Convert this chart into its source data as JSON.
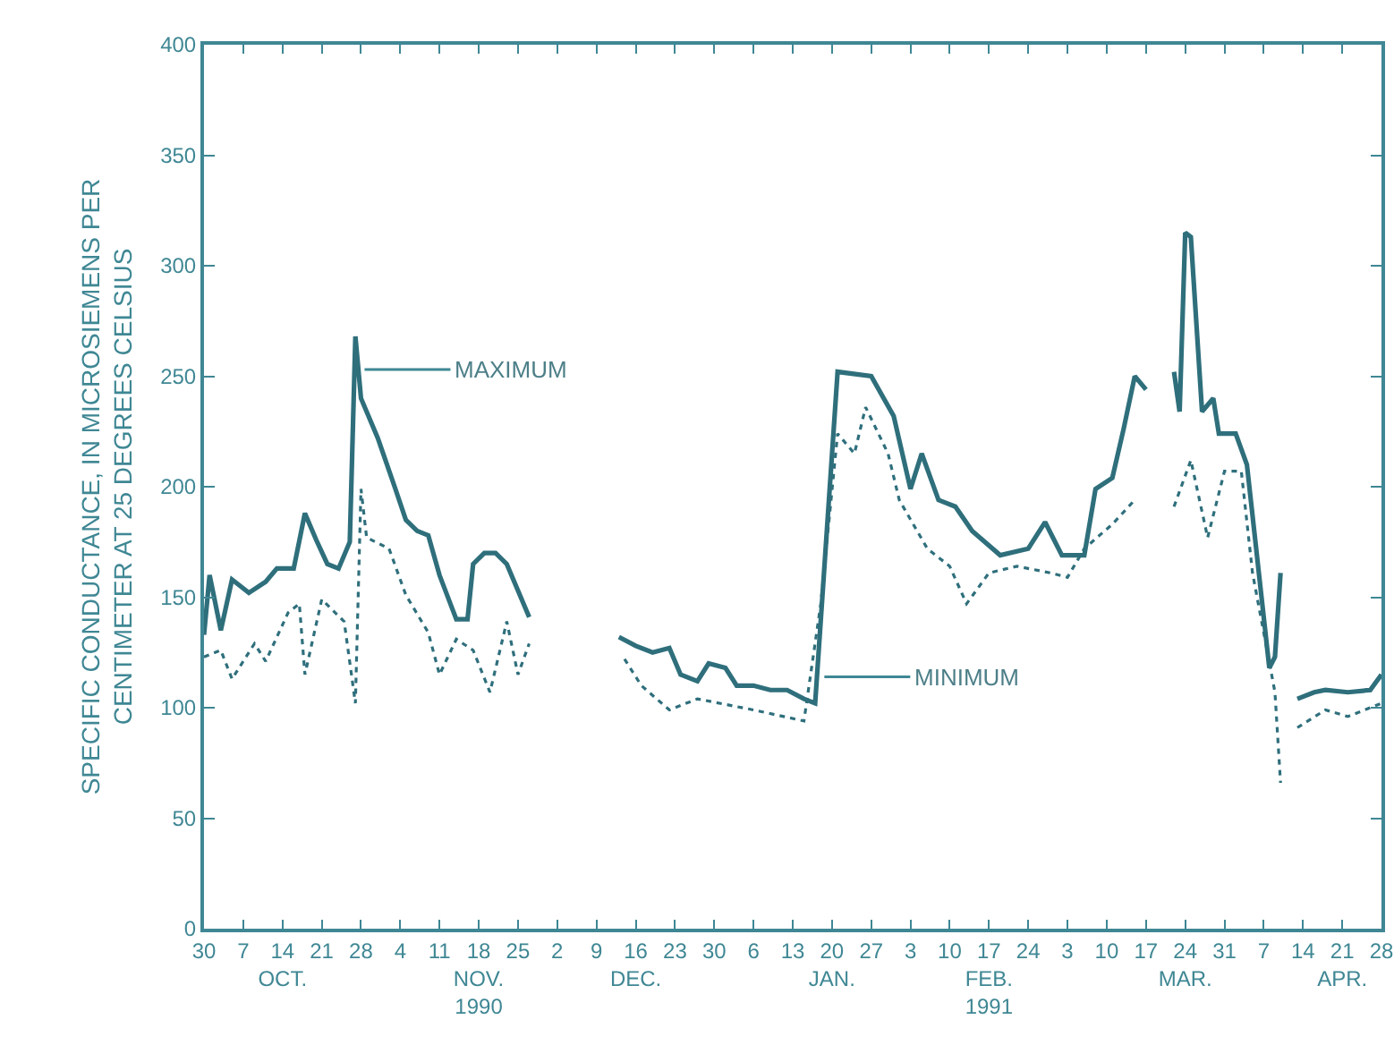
{
  "chart_data": {
    "type": "line",
    "ylabel": "SPECIFIC CONDUCTANCE, IN MICROSIEMENS PER\nCENTIMETER AT 25 DEGREES CELSIUS",
    "xlim": [
      "1990-09-30",
      "1991-04-28"
    ],
    "xticks": [
      {
        "value": "1990-09-30",
        "label": "30"
      },
      {
        "value": "1990-10-07",
        "label": "7"
      },
      {
        "value": "1990-10-14",
        "label": "14\nOCT."
      },
      {
        "value": "1990-10-21",
        "label": "21"
      },
      {
        "value": "1990-10-28",
        "label": "28"
      },
      {
        "value": "1990-11-04",
        "label": "4"
      },
      {
        "value": "1990-11-11",
        "label": "11"
      },
      {
        "value": "1990-11-18",
        "label": "18\nNOV.\n1990"
      },
      {
        "value": "1990-11-25",
        "label": "25"
      },
      {
        "value": "1990-12-02",
        "label": "2"
      },
      {
        "value": "1990-12-09",
        "label": "9"
      },
      {
        "value": "1990-12-16",
        "label": "16\nDEC."
      },
      {
        "value": "1990-12-23",
        "label": "23"
      },
      {
        "value": "1990-12-30",
        "label": "30"
      },
      {
        "value": "1991-01-06",
        "label": "6"
      },
      {
        "value": "1991-01-13",
        "label": "13"
      },
      {
        "value": "1991-01-20",
        "label": "20\nJAN."
      },
      {
        "value": "1991-01-27",
        "label": "27"
      },
      {
        "value": "1991-02-03",
        "label": "3"
      },
      {
        "value": "1991-02-10",
        "label": "10"
      },
      {
        "value": "1991-02-17",
        "label": "17\nFEB.\n1991"
      },
      {
        "value": "1991-02-24",
        "label": "24"
      },
      {
        "value": "1991-03-03",
        "label": "3"
      },
      {
        "value": "1991-03-10",
        "label": "10"
      },
      {
        "value": "1991-03-17",
        "label": "17"
      },
      {
        "value": "1991-03-24",
        "label": "24\nMAR."
      },
      {
        "value": "1991-03-31",
        "label": "31"
      },
      {
        "value": "1991-04-07",
        "label": "7"
      },
      {
        "value": "1991-04-14",
        "label": "14"
      },
      {
        "value": "1991-04-21",
        "label": "21\nAPR."
      },
      {
        "value": "1991-04-28",
        "label": "28"
      }
    ],
    "ylim": [
      0,
      400
    ],
    "yticks": [
      0,
      50,
      100,
      150,
      200,
      250,
      300,
      350,
      400
    ],
    "annotations": [
      {
        "text": "MAXIMUM",
        "x": "1990-10-28",
        "y": 253
      },
      {
        "text": "MINIMUM",
        "x": "1991-01-18",
        "y": 114
      }
    ],
    "series": [
      {
        "color": "#2f6f7c",
        "line_style": "solid",
        "x": [
          "1990-09-30",
          "1990-10-01",
          "1990-10-03",
          "1990-10-05",
          "1990-10-08",
          "1990-10-11",
          "1990-10-13",
          "1990-10-16",
          "1990-10-18",
          "1990-10-20",
          "1990-10-22",
          "1990-10-24",
          "1990-10-26",
          "1990-10-27",
          "1990-10-28",
          "1990-10-31",
          "1990-11-03",
          "1990-11-05",
          "1990-11-07",
          "1990-11-09",
          "1990-11-11",
          "1990-11-14",
          "1990-11-16",
          "1990-11-17",
          "1990-11-19",
          "1990-11-21",
          "1990-11-23",
          "1990-11-27",
          "1990-12-05",
          "1990-12-13",
          "1990-12-16",
          "1990-12-19",
          "1990-12-22",
          "1990-12-24",
          "1990-12-27",
          "1990-12-29",
          "1991-01-01",
          "1991-01-03",
          "1991-01-06",
          "1991-01-09",
          "1991-01-12",
          "1991-01-15",
          "1991-01-17",
          "1991-01-21",
          "1991-01-27",
          "1991-01-31",
          "1991-02-03",
          "1991-02-05",
          "1991-02-08",
          "1991-02-11",
          "1991-02-14",
          "1991-02-19",
          "1991-02-24",
          "1991-02-27",
          "1991-03-02",
          "1991-03-06",
          "1991-03-08",
          "1991-03-11",
          "1991-03-13",
          "1991-03-15",
          "1991-03-17",
          "1991-03-20",
          "1991-03-22",
          "1991-03-23",
          "1991-03-24",
          "1991-03-25",
          "1991-03-27",
          "1991-03-29",
          "1991-03-30",
          "1991-04-02",
          "1991-04-04",
          "1991-04-08",
          "1991-04-09",
          "1991-04-10",
          "1991-04-11",
          "1991-04-13",
          "1991-04-16",
          "1991-04-18",
          "1991-04-22",
          "1991-04-26",
          "1991-04-28"
        ],
        "values": [
          133,
          160,
          135,
          158,
          152,
          157,
          163,
          163,
          188,
          176,
          165,
          163,
          175,
          268,
          240,
          222,
          200,
          185,
          180,
          178,
          160,
          140,
          140,
          165,
          170,
          170,
          165,
          141,
          null,
          132,
          128,
          125,
          127,
          115,
          112,
          120,
          118,
          110,
          110,
          108,
          108,
          104,
          102,
          252,
          250,
          232,
          199,
          215,
          194,
          191,
          180,
          169,
          172,
          184,
          169,
          169,
          199,
          204,
          226,
          250,
          244,
          null,
          252,
          234,
          315,
          313,
          234,
          240,
          224,
          224,
          210,
          118,
          123,
          161,
          null,
          104,
          107,
          108,
          107,
          108,
          115
        ]
      },
      {
        "color": "#2f6f7c",
        "line_style": "dotted",
        "x": [
          "1990-09-30",
          "1990-10-03",
          "1990-10-05",
          "1990-10-09",
          "1990-10-11",
          "1990-10-15",
          "1990-10-17",
          "1990-10-18",
          "1990-10-21",
          "1990-10-25",
          "1990-10-27",
          "1990-10-28",
          "1990-10-29",
          "1990-11-02",
          "1990-11-05",
          "1990-11-09",
          "1990-11-11",
          "1990-11-14",
          "1990-11-17",
          "1990-11-20",
          "1990-11-23",
          "1990-11-25",
          "1990-11-27",
          "1990-12-05",
          "1990-12-14",
          "1990-12-17",
          "1990-12-22",
          "1990-12-27",
          "1991-01-06",
          "1991-01-15",
          "1991-01-18",
          "1991-01-21",
          "1991-01-24",
          "1991-01-26",
          "1991-01-30",
          "1991-02-01",
          "1991-02-06",
          "1991-02-10",
          "1991-02-13",
          "1991-02-17",
          "1991-02-22",
          "1991-02-28",
          "1991-03-03",
          "1991-03-06",
          "1991-03-11",
          "1991-03-15",
          "1991-03-19",
          "1991-03-22",
          "1991-03-25",
          "1991-03-28",
          "1991-03-31",
          "1991-04-03",
          "1991-04-05",
          "1991-04-09",
          "1991-04-10",
          "1991-04-12",
          "1991-04-13",
          "1991-04-18",
          "1991-04-22",
          "1991-04-28"
        ],
        "values": [
          123,
          126,
          113,
          129,
          121,
          143,
          147,
          115,
          149,
          139,
          102,
          199,
          177,
          172,
          151,
          134,
          115,
          131,
          126,
          107,
          139,
          115,
          129,
          null,
          122,
          110,
          99,
          104,
          99,
          94,
          147,
          224,
          215,
          236,
          215,
          194,
          172,
          164,
          147,
          161,
          164,
          161,
          159,
          172,
          183,
          194,
          null,
          191,
          212,
          177,
          207,
          207,
          161,
          107,
          66,
          null,
          91,
          99,
          96,
          102
        ]
      }
    ]
  }
}
